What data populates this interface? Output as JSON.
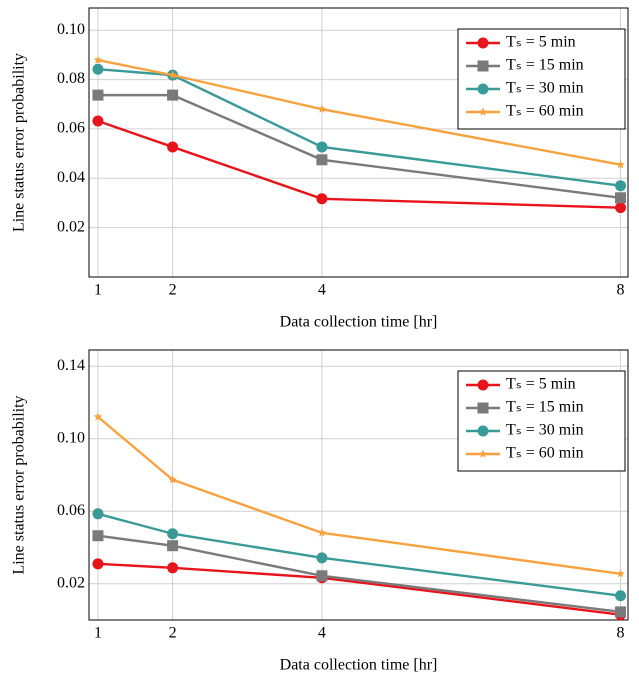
{
  "chart_data": [
    {
      "type": "line",
      "x_label": "Data collection time [hr]",
      "y_label": "Line status error probability",
      "x": [
        1,
        2,
        4,
        8
      ],
      "xlim": [
        0.88,
        8.1
      ],
      "xticks": [
        1,
        2,
        4,
        8
      ],
      "ylim": [
        0,
        0.109
      ],
      "yticks": [
        0.02,
        0.04,
        0.06,
        0.08,
        {
          "value": 0.1,
          "label": "0.10"
        }
      ],
      "grid": true,
      "legend": "upper right",
      "series": [
        {
          "name": "Tₛ = 5 min",
          "color": "#e8141b",
          "marker": "circle",
          "values": [
            0.0632,
            0.0527,
            0.0317,
            0.0281
          ]
        },
        {
          "name": "Tₛ = 15 min",
          "color": "#7a7a7a",
          "marker": "square",
          "values": [
            0.0737,
            0.0737,
            0.0475,
            0.0321
          ]
        },
        {
          "name": "Tₛ = 30 min",
          "color": "#3a9a98",
          "marker": "circle",
          "values": [
            0.0842,
            0.0818,
            0.0527,
            0.037
          ]
        },
        {
          "name": "Tₛ = 60 min",
          "color": "#f7a23e",
          "marker": "star",
          "values": [
            0.0879,
            0.0818,
            0.068,
            0.0455
          ]
        }
      ]
    },
    {
      "type": "line",
      "x_label": "Data collection time [hr]",
      "y_label": "Line status error probability",
      "x": [
        1,
        2,
        4,
        8
      ],
      "xlim": [
        0.88,
        8.1
      ],
      "xticks": [
        1,
        2,
        4,
        8
      ],
      "ylim": [
        0,
        0.149
      ],
      "yticks": [
        0.02,
        0.06,
        {
          "value": 0.1,
          "label": "0.10"
        },
        0.14
      ],
      "grid": true,
      "legend": "upper right",
      "series": [
        {
          "name": "Tₛ = 5 min",
          "color": "#e8141b",
          "marker": "circle",
          "values": [
            0.031,
            0.0288,
            0.0233,
            0.0029
          ]
        },
        {
          "name": "Tₛ = 15 min",
          "color": "#7a7a7a",
          "marker": "square",
          "values": [
            0.0465,
            0.041,
            0.0244,
            0.0045
          ]
        },
        {
          "name": "Tₛ = 30 min",
          "color": "#3a9a98",
          "marker": "circle",
          "values": [
            0.0586,
            0.0476,
            0.0343,
            0.0134
          ]
        },
        {
          "name": "Tₛ = 60 min",
          "color": "#f7a23e",
          "marker": "star",
          "values": [
            0.1121,
            0.0774,
            0.0481,
            0.0255
          ]
        }
      ]
    }
  ]
}
